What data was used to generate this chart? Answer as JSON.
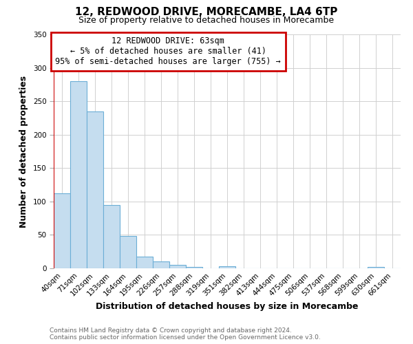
{
  "title": "12, REDWOOD DRIVE, MORECAMBE, LA4 6TP",
  "subtitle": "Size of property relative to detached houses in Morecambe",
  "xlabel": "Distribution of detached houses by size in Morecambe",
  "ylabel": "Number of detached properties",
  "footer_line1": "Contains HM Land Registry data © Crown copyright and database right 2024.",
  "footer_line2": "Contains public sector information licensed under the Open Government Licence v3.0.",
  "bin_labels": [
    "40sqm",
    "71sqm",
    "102sqm",
    "133sqm",
    "164sqm",
    "195sqm",
    "226sqm",
    "257sqm",
    "288sqm",
    "319sqm",
    "351sqm",
    "382sqm",
    "413sqm",
    "444sqm",
    "475sqm",
    "506sqm",
    "537sqm",
    "568sqm",
    "599sqm",
    "630sqm",
    "661sqm"
  ],
  "bar_heights": [
    112,
    280,
    235,
    95,
    48,
    18,
    10,
    5,
    2,
    0,
    3,
    0,
    0,
    0,
    0,
    0,
    0,
    0,
    0,
    2,
    0
  ],
  "bar_color": "#c5ddef",
  "bar_edge_color": "#6baed6",
  "annotation_title": "12 REDWOOD DRIVE: 63sqm",
  "annotation_line2": "← 5% of detached houses are smaller (41)",
  "annotation_line3": "95% of semi-detached houses are larger (755) →",
  "annotation_box_edgecolor": "#cc0000",
  "red_line_color": "#cc0000",
  "ylim_max": 350,
  "yticks": [
    0,
    50,
    100,
    150,
    200,
    250,
    300,
    350
  ],
  "background_color": "#ffffff",
  "grid_color": "#d0d0d0",
  "title_fontsize": 11,
  "subtitle_fontsize": 9,
  "xlabel_fontsize": 9,
  "ylabel_fontsize": 9,
  "footer_fontsize": 6.5,
  "tick_fontsize": 7.5,
  "annot_fontsize": 8.5
}
